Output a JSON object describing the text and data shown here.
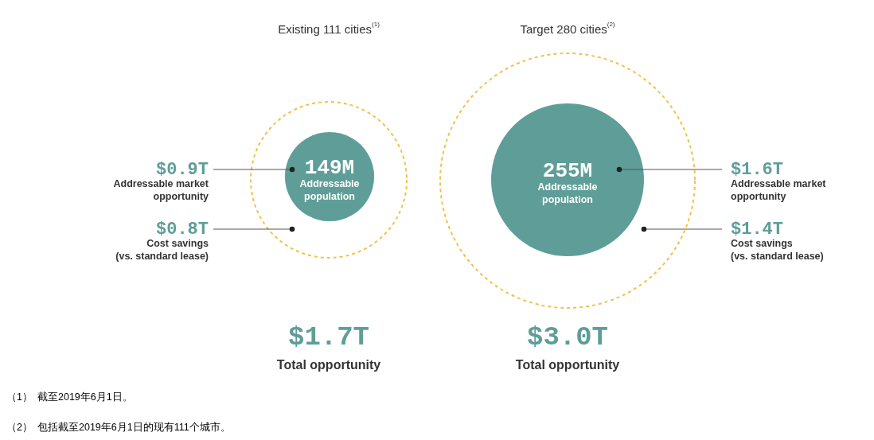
{
  "chart_data": [
    {
      "type": "other",
      "title": "Existing 111 cities$^{(1)}$",
      "color": "#5f9e98",
      "categories": [
        "Addressable\npopulation",
        "Addressable market\nopportunity",
        "Cost savings\n(vs. standard lease)",
        "Total opportunity"
      ],
      "values": [
        149,
        0.9,
        0.8,
        1.7
      ],
      "value_labels": [
        "149M",
        "$0.9T",
        "$0.8T",
        "$1.7T"
      ],
      "annotations": [
        "（1） 截至2019年6月1日。",
        "（2） 包括截至2019年6月1日的现有111个城市。"
      ]
    },
    {
      "type": "other",
      "title": "Target 280 cities$^{(2)}$",
      "color": "#5f9e98",
      "categories": [
        "Addressable\npopulation",
        "Addressable market\nopportunity",
        "Cost savings\n(vs. standard lease)",
        "Total opportunity"
      ],
      "values": [
        255,
        1.6,
        1.4,
        3.0
      ],
      "value_labels": [
        "255M",
        "$1.6T",
        "$1.4T",
        "$3.0T"
      ]
    }
  ]
}
